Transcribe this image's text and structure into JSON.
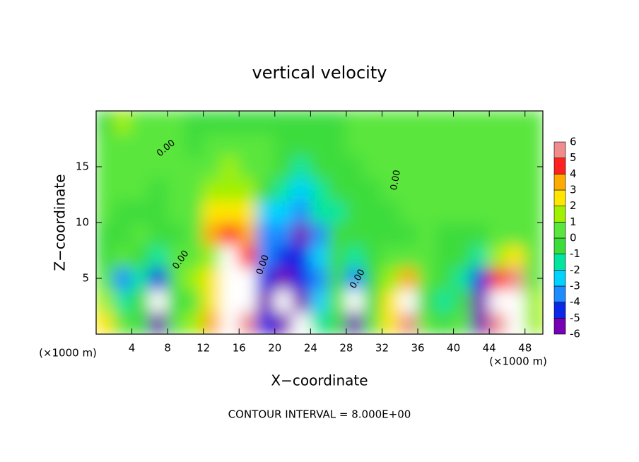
{
  "chart_data": {
    "type": "heatmap",
    "title": "vertical velocity",
    "x_label": "X−coordinate",
    "y_label": "Z−coordinate",
    "unit_label": "(×1000 m)",
    "footer": "CONTOUR INTERVAL = 8.000E+00",
    "contour_label": "0.00",
    "xlim": [
      0,
      50
    ],
    "ylim": [
      0,
      20
    ],
    "xticks": [
      4,
      8,
      12,
      16,
      20,
      24,
      28,
      32,
      36,
      40,
      44,
      48
    ],
    "yticks": [
      5,
      10,
      15
    ],
    "x": [
      1,
      3,
      5,
      7,
      9,
      11,
      13,
      15,
      17,
      19,
      21,
      23,
      25,
      27,
      29,
      31,
      33,
      35,
      37,
      39,
      41,
      43,
      45,
      47,
      49
    ],
    "y": [
      1,
      3,
      5,
      7,
      9,
      11,
      13,
      15,
      17,
      19
    ],
    "z": [
      [
        3,
        1,
        0,
        -5,
        1,
        2,
        4,
        8,
        6,
        -4,
        -5,
        -7,
        -1,
        0,
        -5,
        1,
        3,
        6,
        1,
        0,
        1,
        -5,
        6,
        7,
        2
      ],
      [
        2,
        -1,
        0,
        -7,
        0,
        1,
        3,
        8,
        8,
        -5,
        -7,
        -5,
        -2,
        1,
        -7,
        0,
        3,
        8,
        0,
        -1,
        0,
        -6,
        7,
        8,
        2
      ],
      [
        1,
        -3,
        -1,
        -4,
        1,
        2,
        3,
        8,
        7,
        -4,
        -5,
        -4,
        -3,
        0,
        -3,
        0,
        2,
        4,
        1,
        0,
        -1,
        -4,
        5,
        6,
        1
      ],
      [
        0,
        1,
        0,
        -1,
        1,
        1,
        2,
        7,
        5,
        -3,
        -4,
        -4,
        -2,
        0,
        -1,
        0,
        1,
        1,
        1,
        0,
        0,
        -1,
        2,
        3,
        1
      ],
      [
        0,
        0,
        1,
        0,
        0,
        1,
        4,
        5,
        4,
        -3,
        -3,
        -5,
        -3,
        0,
        0,
        0,
        0,
        0,
        1,
        0,
        0,
        0,
        1,
        1,
        1
      ],
      [
        1,
        0,
        0,
        0,
        1,
        1,
        3,
        3,
        3,
        -2,
        -2,
        -3,
        -1,
        -1,
        0,
        0,
        0,
        1,
        1,
        1,
        1,
        1,
        1,
        1,
        1
      ],
      [
        1,
        1,
        1,
        0,
        1,
        1,
        2,
        2,
        2,
        0,
        -1,
        -2,
        -1,
        0,
        0,
        0,
        1,
        1,
        1,
        1,
        1,
        1,
        1,
        1,
        1
      ],
      [
        1,
        1,
        1,
        1,
        1,
        1,
        1,
        2,
        1,
        1,
        0,
        -1,
        0,
        0,
        0,
        1,
        1,
        1,
        1,
        1,
        1,
        1,
        1,
        1,
        1
      ],
      [
        1,
        1,
        1,
        1,
        1,
        0,
        1,
        1,
        1,
        1,
        0,
        0,
        0,
        0,
        1,
        1,
        1,
        1,
        1,
        1,
        1,
        1,
        1,
        1,
        1
      ],
      [
        0,
        2,
        1,
        1,
        1,
        0,
        0,
        0,
        0,
        0,
        0,
        0,
        0,
        0,
        1,
        1,
        1,
        1,
        1,
        1,
        1,
        1,
        1,
        1,
        1
      ]
    ],
    "levels": [
      -6,
      -5,
      -4,
      -3,
      -2,
      -1,
      0,
      1,
      2,
      3,
      4,
      5,
      6
    ],
    "colors": [
      "#7800b4",
      "#0a28e6",
      "#1e8cff",
      "#00d2ff",
      "#00e6a0",
      "#3cdc3c",
      "#5ae63c",
      "#a0f000",
      "#ffe600",
      "#ffaa00",
      "#ff2020",
      "#f08c8c"
    ],
    "out_of_range_color": "#ffffff"
  }
}
